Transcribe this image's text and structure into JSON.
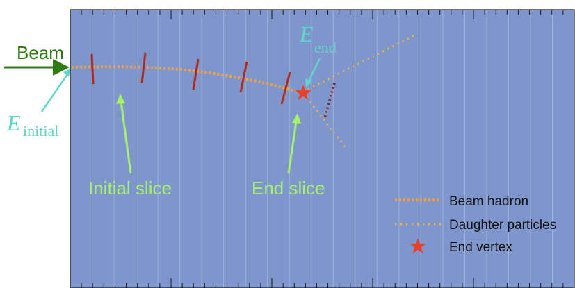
{
  "labels": {
    "beam": "Beam",
    "e_initial_symbol": "E",
    "e_initial_sub": "initial",
    "e_end_symbol": "E",
    "e_end_sub": "end",
    "initial_slice": "Initial slice",
    "end_slice": "End slice"
  },
  "legend": {
    "items": [
      {
        "label": "Beam hadron",
        "marker": "dotted-line-thick"
      },
      {
        "label": "Daughter particles",
        "marker": "dotted-line-thin"
      },
      {
        "label": "End vertex",
        "marker": "star"
      }
    ]
  },
  "colors": {
    "background": "#7f96cc",
    "grid_line": "#9eb0db",
    "axis_tick": "#1a1a1a",
    "beam_arrow": "#2e7d14",
    "beam_label": "#2e7d14",
    "energy_label": "#5fd6c8",
    "slice_arrow": "#a6f06a",
    "slice_label": "#a6f06a",
    "slice_marker": "#b02a1e",
    "beam_hadron": "#f5a040",
    "daughter": "#f5b23a",
    "vertex_star": "#e8402a",
    "daughter_dark": "#8b1a12"
  }
}
